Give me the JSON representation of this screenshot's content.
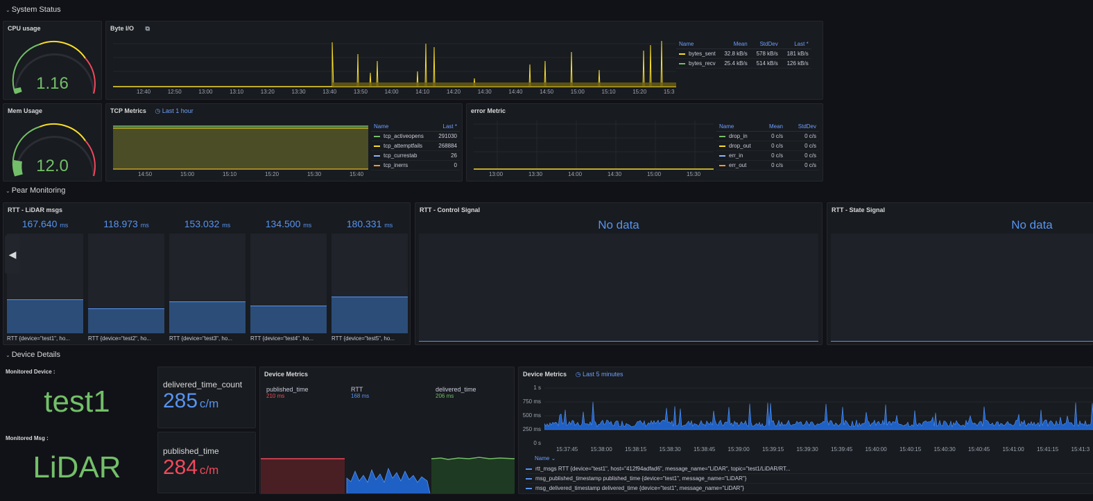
{
  "rows": {
    "system_status": "System Status",
    "pear_monitoring": "Pear Monitoring",
    "device_details": "Device Details"
  },
  "cpu": {
    "title": "CPU usage",
    "value": "1.16",
    "fraction": 0.03
  },
  "mem": {
    "title": "Mem Usage",
    "value": "12.0",
    "fraction": 0.12
  },
  "byte_io": {
    "title": "Byte I/O",
    "x_ticks": [
      "12:40",
      "12:50",
      "13:00",
      "13:10",
      "13:20",
      "13:30",
      "13:40",
      "13:50",
      "14:00",
      "14:10",
      "14:20",
      "14:30",
      "14:40",
      "14:50",
      "15:00",
      "15:10",
      "15:20",
      "15:3"
    ],
    "legend_headers": [
      "Name",
      "Mean",
      "StdDev",
      "Last *"
    ],
    "legend": [
      {
        "name": "bytes_sent",
        "mean": "32.8 kB/s",
        "stddev": "578 kB/s",
        "last": "181 kB/s",
        "color": "#fade2a"
      },
      {
        "name": "bytes_recv",
        "mean": "25.4 kB/s",
        "stddev": "514 kB/s",
        "last": "126 kB/s",
        "color": "#73bf69"
      }
    ]
  },
  "tcp": {
    "title": "TCP Metrics",
    "time_info": "Last 1 hour",
    "x_ticks": [
      "14:50",
      "15:00",
      "15:10",
      "15:20",
      "15:30",
      "15:40"
    ],
    "legend_headers": [
      "Name",
      "Last *"
    ],
    "legend": [
      {
        "name": "tcp_activeopens",
        "last": "291030",
        "color": "#73bf69"
      },
      {
        "name": "tcp_attemptfails",
        "last": "268884",
        "color": "#fade2a"
      },
      {
        "name": "tcp_currestab",
        "last": "26",
        "color": "#8ab8ff"
      },
      {
        "name": "tcp_inerrs",
        "last": "0",
        "color": "#ff9830"
      }
    ]
  },
  "error": {
    "title": "error Metric",
    "x_ticks": [
      "13:00",
      "13:30",
      "14:00",
      "14:30",
      "15:00",
      "15:30"
    ],
    "legend_headers": [
      "Name",
      "Mean",
      "StdDev"
    ],
    "legend": [
      {
        "name": "drop_in",
        "mean": "0 c/s",
        "stddev": "0 c/s",
        "color": "#73bf69"
      },
      {
        "name": "drop_out",
        "mean": "0 c/s",
        "stddev": "0 c/s",
        "color": "#fade2a"
      },
      {
        "name": "err_in",
        "mean": "0 c/s",
        "stddev": "0 c/s",
        "color": "#8ab8ff"
      },
      {
        "name": "err_out",
        "mean": "0 c/s",
        "stddev": "0 c/s",
        "color": "#ff9830"
      }
    ]
  },
  "rtt_lidar": {
    "title": "RTT - LiDAR msgs",
    "unit": "ms",
    "items": [
      {
        "value": "167.640",
        "label": "RTT {device=\"test1\", ho...",
        "level": 0.33
      },
      {
        "value": "118.973",
        "label": "RTT {device=\"test2\", ho...",
        "level": 0.24
      },
      {
        "value": "153.032",
        "label": "RTT {device=\"test3\", ho...",
        "level": 0.31
      },
      {
        "value": "134.500",
        "label": "RTT {device=\"test4\", ho...",
        "level": 0.27
      },
      {
        "value": "180.331",
        "label": "RTT {device=\"test5\", ho...",
        "level": 0.36
      }
    ]
  },
  "rtt_control": {
    "title": "RTT - Control Signal",
    "no_data": "No data"
  },
  "rtt_state": {
    "title": "RTT - State Signal",
    "no_data": "No data"
  },
  "device": {
    "monitored_device_label": "Monitored Device :",
    "monitored_device": "test1",
    "monitored_msg_label": "Monitored Msg :",
    "monitored_msg": "LiDAR",
    "delivered_count_title": "delivered_time_count",
    "delivered_count_value": "285",
    "delivered_count_unit": "c/m",
    "published_title": "published_time",
    "published_value": "284",
    "published_unit": "c/m"
  },
  "device_metrics_left": {
    "title": "Device Metrics",
    "stats": [
      {
        "name": "published_time",
        "value": "210 ms",
        "color": "#f2495c"
      },
      {
        "name": "RTT",
        "value": "168 ms",
        "color": "#5794f2"
      },
      {
        "name": "delivered_time",
        "value": "206 ms",
        "color": "#73bf69"
      }
    ]
  },
  "device_metrics_right": {
    "title": "Device Metrics",
    "time_info": "Last 5 minutes",
    "y_ticks": [
      "1 s",
      "750 ms",
      "500 ms",
      "250 ms",
      "0 s"
    ],
    "x_ticks": [
      "15:37:45",
      "15:38:00",
      "15:38:15",
      "15:38:30",
      "15:38:45",
      "15:39:00",
      "15:39:15",
      "15:39:30",
      "15:39:45",
      "15:40:00",
      "15:40:15",
      "15:40:30",
      "15:40:45",
      "15:41:00",
      "15:41:15",
      "15:41:3"
    ],
    "legend_header": "Name",
    "legend": [
      "rtt_msgs RTT {device=\"test1\", host=\"412f94adfad6\", message_name=\"LiDAR\", topic=\"test1/LiDAR/RT...",
      "msg_published_timestamp published_time {device=\"test1\", message_name=\"LiDAR\"}",
      "msg_delivered_timestamp delivered_time {device=\"test1\", message_name=\"LiDAR\"}"
    ]
  },
  "colors": {
    "blue": "#5794f2",
    "green": "#73bf69",
    "red": "#f2495c",
    "yellow": "#fade2a",
    "orange": "#ff9830"
  }
}
